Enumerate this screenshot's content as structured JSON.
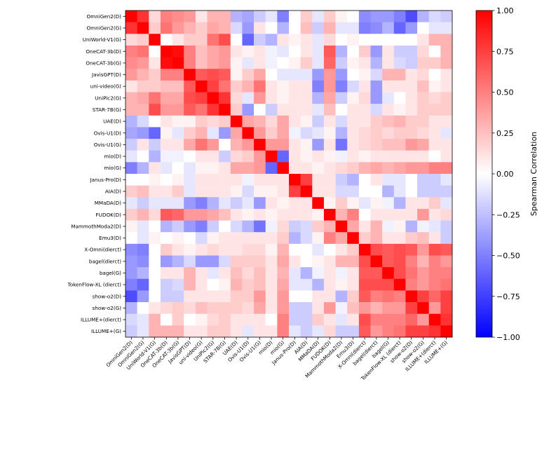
{
  "chart_data": {
    "type": "heatmap",
    "title": "",
    "labels": [
      "OmniGen2(D)",
      "OmniGen2(G)",
      "UniWorld-V1(G)",
      "OneCAT-3b(D)",
      "OneCAT-3b(G)",
      "JavisGPT(D)",
      "uni-video(G)",
      "UniPic2(G)",
      "STAR-7B(G)",
      "UAE(D)",
      "Ovis-U1(D)",
      "Ovis-U1(G)",
      "mio(D)",
      "mio(G)",
      "Janus-Pro(D)",
      "AIA(D)",
      "MMaDA(D)",
      "FUDOK(D)",
      "MammothModa2(D)",
      "Emu3(D)",
      "X-Omni(dierct)",
      "bagel(dierct)",
      "bagel(G)",
      "TokenFlow-XL (dierct)",
      "show-o2(D)",
      "show-o2(G)",
      "ILLUME+(dierct)",
      "ILLUME+(G)"
    ],
    "matrix": [
      [
        1.0,
        0.8,
        0.15,
        0.5,
        0.45,
        0.4,
        0.1,
        0.3,
        0.3,
        -0.3,
        -0.35,
        -0.2,
        -0.1,
        -0.5,
        0.0,
        0.2,
        -0.1,
        0.2,
        0.05,
        0.0,
        -0.45,
        -0.4,
        -0.4,
        -0.5,
        -0.7,
        -0.3,
        -0.15,
        -0.2
      ],
      [
        0.8,
        1.0,
        0.2,
        0.55,
        0.4,
        0.3,
        0.2,
        0.35,
        0.3,
        -0.15,
        -0.4,
        0.1,
        0.0,
        -0.3,
        0.0,
        0.25,
        -0.2,
        0.3,
        -0.1,
        -0.1,
        -0.5,
        -0.45,
        -0.3,
        -0.6,
        -0.4,
        0.0,
        -0.1,
        -0.1
      ],
      [
        0.15,
        0.2,
        1.0,
        0.0,
        0.1,
        0.2,
        0.2,
        0.55,
        0.7,
        0.0,
        -0.6,
        -0.2,
        -0.3,
        0.1,
        0.05,
        0.1,
        -0.1,
        0.15,
        0.0,
        0.05,
        0.0,
        0.0,
        0.0,
        0.0,
        0.0,
        0.1,
        0.3,
        0.3
      ],
      [
        0.5,
        0.55,
        0.0,
        1.0,
        0.95,
        0.5,
        0.25,
        0.35,
        0.4,
        0.1,
        0.05,
        0.1,
        -0.05,
        -0.1,
        0.0,
        0.1,
        -0.1,
        0.65,
        -0.3,
        0.0,
        0.2,
        -0.4,
        0.1,
        -0.2,
        -0.2,
        0.15,
        0.0,
        0.3
      ],
      [
        0.45,
        0.4,
        0.1,
        0.95,
        1.0,
        0.5,
        0.25,
        0.35,
        0.4,
        0.05,
        -0.1,
        0.1,
        -0.05,
        0.0,
        0.05,
        0.2,
        -0.1,
        0.6,
        -0.2,
        0.05,
        0.1,
        -0.3,
        0.1,
        -0.15,
        -0.2,
        0.2,
        0.2,
        0.3
      ],
      [
        0.4,
        0.3,
        0.2,
        0.5,
        0.5,
        1.0,
        0.65,
        0.7,
        0.65,
        0.05,
        0.2,
        0.35,
        0.0,
        -0.1,
        -0.1,
        -0.1,
        -0.4,
        0.4,
        -0.4,
        0.0,
        0.05,
        -0.15,
        0.3,
        0.3,
        0.1,
        0.15,
        0.0,
        0.1
      ],
      [
        0.1,
        0.2,
        0.2,
        0.25,
        0.25,
        0.65,
        1.0,
        0.75,
        0.55,
        0.2,
        0.3,
        0.55,
        0.1,
        0.05,
        0.1,
        0.1,
        -0.5,
        0.4,
        -0.5,
        -0.15,
        0.1,
        -0.4,
        0.1,
        0.1,
        0.1,
        0.25,
        0.05,
        0.1
      ],
      [
        0.3,
        0.35,
        0.55,
        0.35,
        0.35,
        0.7,
        0.75,
        1.0,
        0.8,
        0.15,
        -0.1,
        0.4,
        0.1,
        0.05,
        0.1,
        0.1,
        -0.3,
        0.35,
        -0.2,
        0.05,
        0.15,
        -0.4,
        -0.1,
        0.0,
        0.1,
        0.2,
        0.15,
        0.2
      ],
      [
        0.3,
        0.3,
        0.7,
        0.4,
        0.4,
        0.65,
        0.55,
        0.8,
        1.0,
        0.2,
        -0.4,
        0.0,
        -0.2,
        0.1,
        0.1,
        0.1,
        -0.1,
        0.25,
        0.0,
        0.1,
        0.1,
        -0.15,
        0.1,
        0.05,
        0.1,
        0.2,
        0.2,
        0.2
      ],
      [
        -0.3,
        -0.15,
        0.0,
        0.1,
        0.05,
        0.05,
        0.2,
        0.15,
        0.2,
        1.0,
        0.35,
        0.3,
        0.15,
        0.35,
        0.1,
        0.05,
        -0.2,
        0.1,
        -0.15,
        0.1,
        0.1,
        0.2,
        0.25,
        0.3,
        0.2,
        0.2,
        0.1,
        0.1
      ],
      [
        -0.35,
        -0.4,
        -0.6,
        0.05,
        -0.1,
        0.2,
        0.3,
        -0.1,
        -0.4,
        0.35,
        1.0,
        0.4,
        0.2,
        0.35,
        -0.05,
        -0.15,
        -0.1,
        0.05,
        -0.3,
        0.1,
        0.15,
        0.2,
        0.15,
        0.2,
        0.2,
        0.15,
        0.1,
        -0.1
      ],
      [
        -0.2,
        0.1,
        -0.2,
        0.1,
        0.1,
        0.35,
        0.55,
        0.4,
        0.0,
        0.3,
        0.4,
        1.0,
        0.4,
        0.4,
        0.1,
        0.05,
        -0.4,
        0.1,
        -0.55,
        0.1,
        0.15,
        0.2,
        0.25,
        0.25,
        0.4,
        0.35,
        0.1,
        0.1
      ],
      [
        -0.1,
        0.0,
        -0.3,
        -0.05,
        -0.05,
        0.0,
        0.1,
        0.1,
        -0.2,
        0.15,
        0.2,
        0.4,
        1.0,
        -0.6,
        0.1,
        0.05,
        0.1,
        0.05,
        -0.05,
        0.1,
        0.05,
        0.1,
        0.1,
        0.1,
        0.1,
        0.1,
        0.0,
        0.1
      ],
      [
        -0.5,
        -0.3,
        0.1,
        -0.1,
        0.0,
        -0.1,
        0.05,
        0.05,
        0.1,
        0.35,
        0.35,
        0.4,
        -0.6,
        1.0,
        0.1,
        0.1,
        0.05,
        0.1,
        0.15,
        0.2,
        0.3,
        0.35,
        0.3,
        0.35,
        0.4,
        0.4,
        0.5,
        0.5
      ],
      [
        0.0,
        0.0,
        0.05,
        0.0,
        0.05,
        -0.1,
        0.1,
        0.1,
        0.1,
        0.1,
        -0.05,
        0.1,
        0.1,
        0.1,
        1.0,
        0.75,
        0.1,
        0.1,
        -0.2,
        -0.3,
        0.0,
        0.1,
        -0.1,
        -0.1,
        0.0,
        -0.2,
        -0.2,
        -0.1
      ],
      [
        0.2,
        0.25,
        0.1,
        0.1,
        0.2,
        -0.1,
        0.1,
        0.1,
        0.1,
        0.05,
        -0.15,
        0.05,
        0.05,
        0.1,
        0.75,
        1.0,
        0.1,
        0.1,
        -0.15,
        -0.15,
        0.0,
        0.0,
        -0.3,
        -0.1,
        0.0,
        -0.2,
        -0.2,
        -0.2
      ],
      [
        -0.1,
        -0.2,
        -0.1,
        -0.1,
        -0.1,
        -0.4,
        -0.5,
        -0.3,
        -0.1,
        -0.2,
        -0.1,
        -0.4,
        0.1,
        0.05,
        0.1,
        0.1,
        1.0,
        0.05,
        0.2,
        0.05,
        -0.1,
        0.05,
        -0.05,
        -0.3,
        0.1,
        0.1,
        0.2,
        -0.1
      ],
      [
        0.2,
        0.3,
        0.15,
        0.65,
        0.6,
        0.4,
        0.4,
        0.35,
        0.25,
        0.1,
        0.05,
        0.1,
        0.05,
        0.1,
        0.1,
        0.1,
        0.05,
        1.0,
        0.3,
        0.5,
        0.0,
        0.1,
        0.1,
        0.1,
        0.1,
        0.4,
        0.1,
        0.15
      ],
      [
        0.05,
        -0.1,
        0.0,
        -0.3,
        -0.2,
        -0.4,
        -0.5,
        -0.2,
        0.0,
        -0.15,
        -0.3,
        -0.55,
        -0.05,
        0.15,
        -0.2,
        -0.15,
        0.2,
        0.3,
        1.0,
        0.35,
        0.1,
        0.3,
        -0.05,
        0.05,
        -0.3,
        -0.05,
        -0.1,
        -0.2
      ],
      [
        0.0,
        -0.1,
        0.05,
        0.0,
        0.05,
        0.0,
        -0.15,
        0.05,
        0.1,
        0.1,
        0.1,
        0.1,
        0.1,
        0.2,
        -0.3,
        -0.15,
        0.05,
        0.5,
        0.35,
        1.0,
        0.2,
        0.3,
        0.1,
        0.1,
        0.2,
        0.25,
        0.1,
        -0.2
      ],
      [
        -0.45,
        -0.5,
        0.0,
        0.2,
        0.1,
        0.05,
        0.1,
        0.15,
        0.1,
        0.1,
        0.15,
        0.15,
        0.05,
        0.3,
        0.0,
        0.0,
        -0.1,
        0.0,
        0.1,
        0.2,
        1.0,
        0.7,
        0.65,
        0.7,
        0.65,
        0.4,
        0.7,
        0.65
      ],
      [
        -0.4,
        -0.45,
        0.0,
        -0.4,
        -0.3,
        -0.15,
        -0.4,
        -0.4,
        -0.15,
        0.2,
        0.2,
        0.2,
        0.1,
        0.35,
        0.1,
        0.0,
        0.05,
        0.1,
        0.3,
        0.3,
        0.7,
        1.0,
        0.65,
        0.7,
        0.5,
        0.3,
        0.5,
        0.4
      ],
      [
        -0.4,
        -0.3,
        0.0,
        0.1,
        0.1,
        0.3,
        0.1,
        -0.1,
        0.1,
        0.25,
        0.15,
        0.25,
        0.1,
        0.3,
        -0.1,
        -0.3,
        -0.05,
        0.1,
        -0.05,
        0.1,
        0.65,
        0.65,
        1.0,
        0.7,
        0.55,
        0.4,
        0.5,
        0.5
      ],
      [
        -0.5,
        -0.6,
        0.0,
        -0.2,
        -0.15,
        0.3,
        0.1,
        0.0,
        0.05,
        0.3,
        0.2,
        0.25,
        0.1,
        0.35,
        -0.1,
        -0.1,
        -0.3,
        0.1,
        0.05,
        0.1,
        0.7,
        0.7,
        0.7,
        1.0,
        0.5,
        0.4,
        0.5,
        0.55
      ],
      [
        -0.7,
        -0.4,
        0.0,
        -0.2,
        -0.2,
        0.1,
        0.1,
        0.1,
        0.1,
        0.2,
        0.2,
        0.4,
        0.1,
        0.4,
        0.0,
        0.0,
        0.1,
        0.1,
        -0.3,
        0.2,
        0.65,
        0.5,
        0.55,
        0.5,
        1.0,
        0.75,
        0.6,
        0.75
      ],
      [
        -0.3,
        0.0,
        0.1,
        0.15,
        0.2,
        0.15,
        0.25,
        0.2,
        0.2,
        0.2,
        0.15,
        0.35,
        0.1,
        0.4,
        -0.2,
        -0.2,
        0.1,
        0.4,
        -0.05,
        0.25,
        0.4,
        0.3,
        0.4,
        0.4,
        0.75,
        1.0,
        0.4,
        0.75
      ],
      [
        -0.15,
        -0.1,
        0.3,
        0.0,
        0.2,
        0.0,
        0.05,
        0.15,
        0.2,
        0.1,
        0.1,
        0.1,
        0.0,
        0.5,
        -0.2,
        -0.2,
        0.2,
        0.1,
        -0.1,
        0.1,
        0.7,
        0.5,
        0.5,
        0.5,
        0.6,
        0.4,
        1.0,
        0.8
      ],
      [
        -0.2,
        -0.1,
        0.3,
        0.3,
        0.3,
        0.1,
        0.1,
        0.2,
        0.2,
        0.1,
        -0.1,
        0.1,
        0.1,
        0.5,
        -0.1,
        -0.2,
        -0.1,
        0.15,
        -0.2,
        -0.2,
        0.65,
        0.4,
        0.5,
        0.55,
        0.75,
        0.75,
        0.8,
        1.0
      ]
    ],
    "vmin": -1.0,
    "vmax": 1.0,
    "colormap": "bwr",
    "colorbar": {
      "label": "Spearman Correlation",
      "ticks": [
        -1.0,
        -0.75,
        -0.5,
        -0.25,
        0.0,
        0.25,
        0.5,
        0.75,
        1.0
      ],
      "tick_labels": [
        "−1.00",
        "−0.75",
        "−0.50",
        "−0.25",
        "0.00",
        "0.25",
        "0.50",
        "0.75",
        "1.00"
      ]
    },
    "xlabel": "",
    "ylabel": ""
  }
}
